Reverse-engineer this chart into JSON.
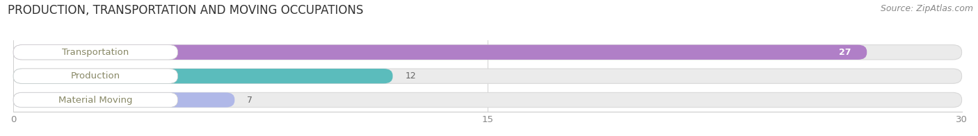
{
  "title": "PRODUCTION, TRANSPORTATION AND MOVING OCCUPATIONS",
  "source": "Source: ZipAtlas.com",
  "categories": [
    "Transportation",
    "Production",
    "Material Moving"
  ],
  "values": [
    27,
    12,
    7
  ],
  "bar_colors": [
    "#b07fc7",
    "#5bbcbc",
    "#b0b8e8"
  ],
  "bar_bg_color": "#ebebeb",
  "xlim": [
    0,
    30
  ],
  "xticks": [
    0,
    15,
    30
  ],
  "figsize": [
    14.06,
    1.96
  ],
  "dpi": 100,
  "title_fontsize": 12,
  "label_fontsize": 9.5,
  "value_fontsize": 9,
  "source_fontsize": 9,
  "bar_height": 0.62,
  "background_color": "#ffffff",
  "label_text_color": "#888866",
  "value_color_inside": "#ffffff",
  "value_color_outside": "#666666"
}
